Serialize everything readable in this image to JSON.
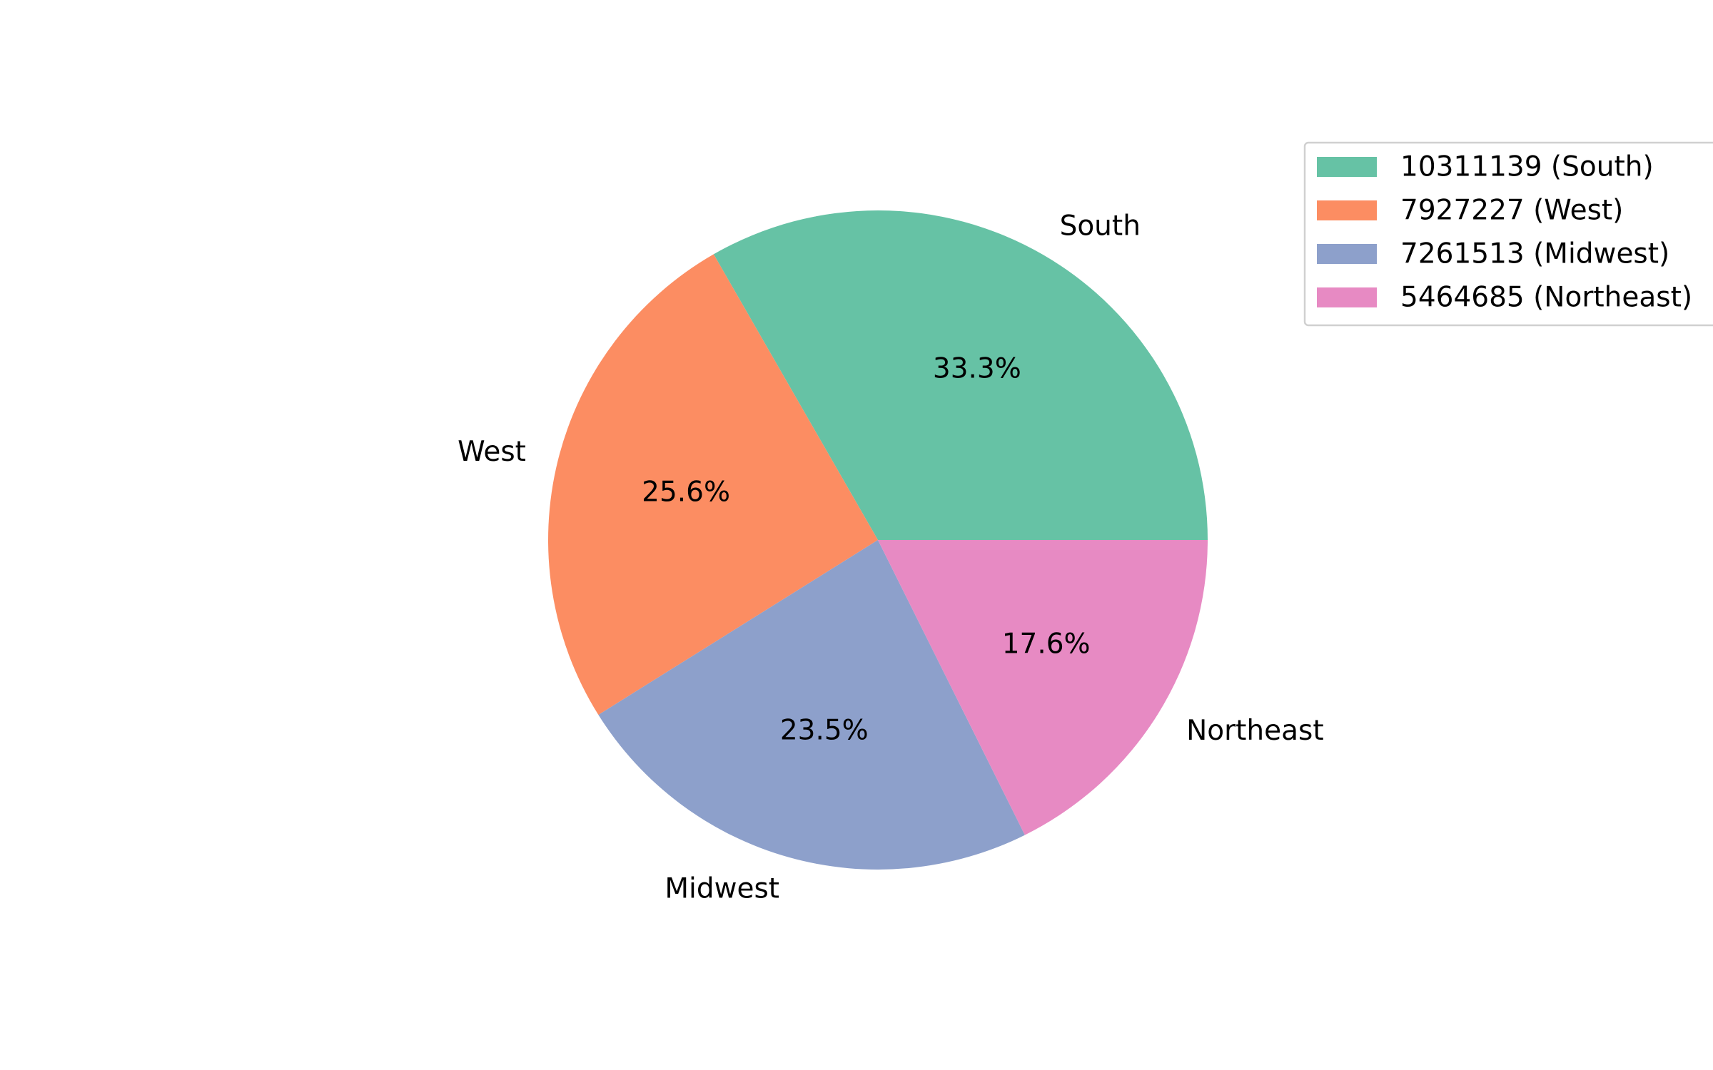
{
  "chart_data": {
    "type": "pie",
    "title": "",
    "startangle": 0,
    "direction": "counterclockwise",
    "slices": [
      {
        "label": "South",
        "value": 10311139,
        "percent_label": "33.3%",
        "legend": "10311139 (South)",
        "color": "#66c2a5"
      },
      {
        "label": "West",
        "value": 7927227,
        "percent_label": "25.6%",
        "legend": "7927227 (West)",
        "color": "#fc8d62"
      },
      {
        "label": "Midwest",
        "value": 7261513,
        "percent_label": "23.5%",
        "legend": "7261513 (Midwest)",
        "color": "#8da0cb"
      },
      {
        "label": "Northeast",
        "value": 5464685,
        "percent_label": "17.6%",
        "legend": "5464685 (Northeast)",
        "color": "#e78ac3"
      }
    ],
    "legend_placement": "top-right"
  }
}
